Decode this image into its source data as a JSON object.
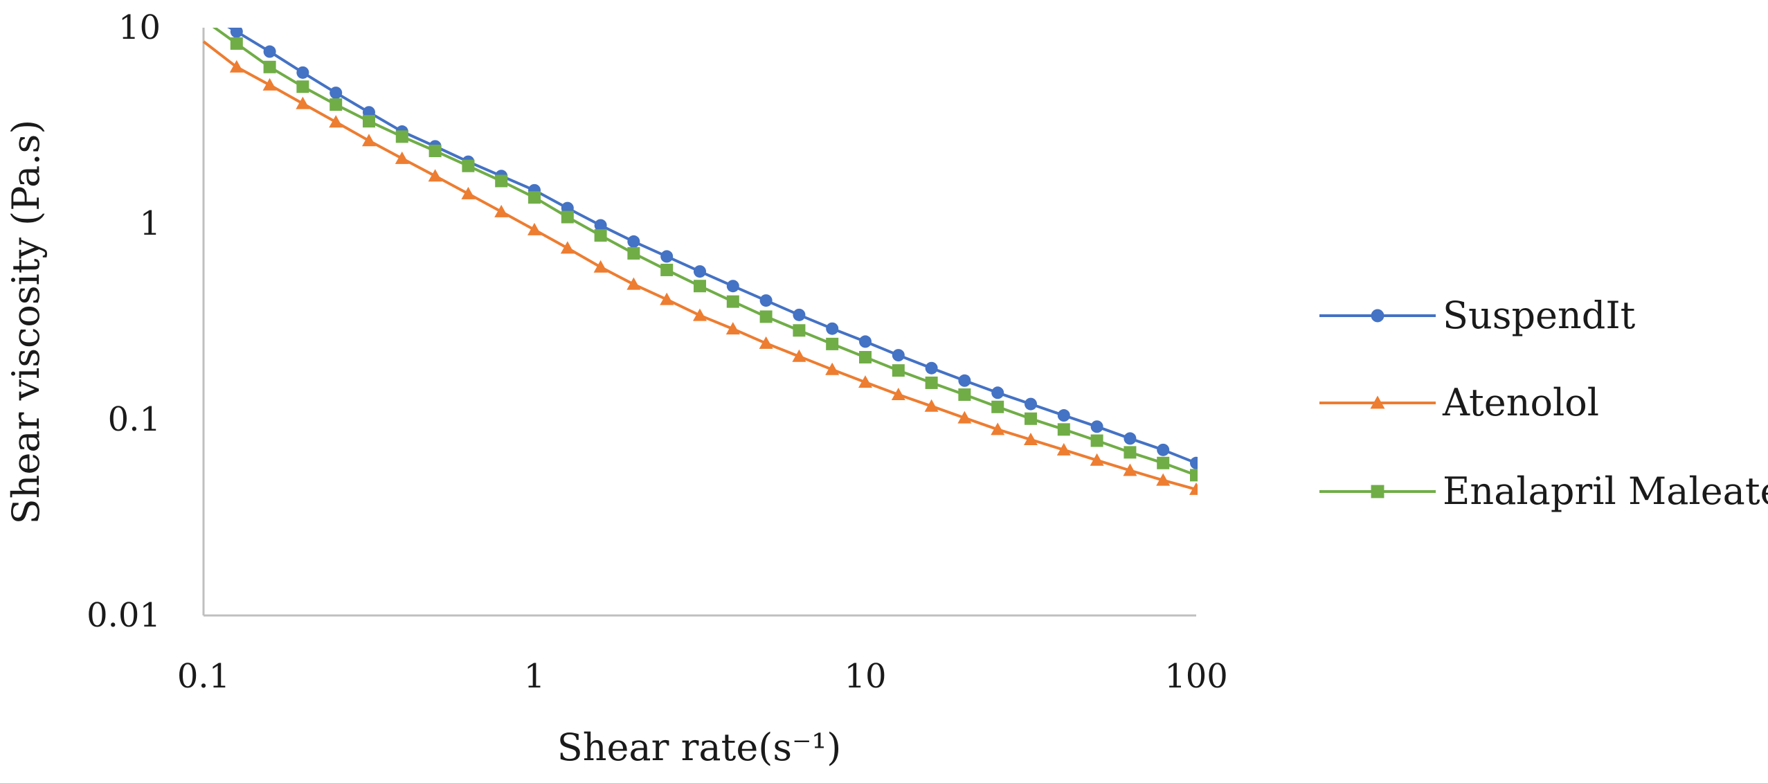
{
  "chart_data": {
    "type": "line",
    "title": "",
    "xlabel": "Shear rate(s⁻¹)",
    "ylabel": "Shear viscosity  (Pa.s)",
    "xscale": "log",
    "yscale": "log",
    "xlim": [
      0.1,
      100
    ],
    "ylim": [
      0.01,
      10
    ],
    "xticks": [
      0.1,
      1,
      10,
      100
    ],
    "xtick_labels": [
      "0.1",
      "1",
      "10",
      "100"
    ],
    "yticks": [
      0.01,
      0.1,
      1,
      10
    ],
    "ytick_labels": [
      "0.01",
      "0.1",
      "1",
      "10"
    ],
    "grid": false,
    "legend_position": "right",
    "x": [
      0.1,
      0.1259,
      0.1585,
      0.1995,
      0.2512,
      0.3162,
      0.3981,
      0.5012,
      0.631,
      0.7943,
      1,
      1.259,
      1.585,
      1.995,
      2.512,
      3.162,
      3.981,
      5.012,
      6.31,
      7.943,
      10,
      12.59,
      15.85,
      19.95,
      25.12,
      31.62,
      39.81,
      50.12,
      63.1,
      79.43,
      100
    ],
    "series": [
      {
        "name": "SuspendIt",
        "color": "#4472C4",
        "marker": "circle",
        "values": [
          12.0,
          9.55,
          7.55,
          5.9,
          4.65,
          3.7,
          2.95,
          2.48,
          2.07,
          1.75,
          1.48,
          1.2,
          0.98,
          0.81,
          0.68,
          0.57,
          0.48,
          0.405,
          0.342,
          0.291,
          0.25,
          0.213,
          0.183,
          0.158,
          0.137,
          0.12,
          0.105,
          0.092,
          0.08,
          0.07,
          0.06
        ]
      },
      {
        "name": "Atenolol",
        "color": "#ED7D31",
        "marker": "triangle",
        "values": [
          8.5,
          6.3,
          5.1,
          4.1,
          3.3,
          2.65,
          2.15,
          1.75,
          1.42,
          1.15,
          0.93,
          0.75,
          0.6,
          0.49,
          0.41,
          0.34,
          0.29,
          0.245,
          0.21,
          0.18,
          0.155,
          0.134,
          0.117,
          0.102,
          0.089,
          0.079,
          0.07,
          0.062,
          0.055,
          0.049,
          0.044
        ]
      },
      {
        "name": "Enalapril Maleate",
        "color": "#70AD47",
        "marker": "square",
        "values": [
          11.0,
          8.3,
          6.3,
          5.0,
          4.05,
          3.33,
          2.78,
          2.35,
          1.97,
          1.65,
          1.36,
          1.08,
          0.87,
          0.705,
          0.58,
          0.48,
          0.4,
          0.335,
          0.285,
          0.243,
          0.208,
          0.178,
          0.154,
          0.134,
          0.116,
          0.101,
          0.089,
          0.078,
          0.068,
          0.06,
          0.052
        ]
      }
    ]
  }
}
